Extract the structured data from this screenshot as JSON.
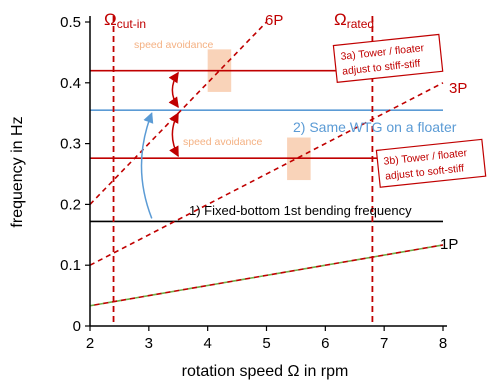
{
  "chart_data": {
    "type": "line",
    "xlabel": "rotation speed Ω in rpm",
    "ylabel": "frequency in Hz",
    "xlim": [
      2,
      8
    ],
    "ylim": [
      0,
      0.5
    ],
    "xticks": [
      "2",
      "3",
      "4",
      "5",
      "6",
      "7",
      "8"
    ],
    "yticks": [
      "0",
      "0.1",
      "0.2",
      "0.3",
      "0.4",
      "0.5"
    ],
    "grid": false,
    "excitation_lines": [
      {
        "name": "1P",
        "x": [
          2,
          8
        ],
        "y": [
          0.0333,
          0.1333
        ]
      },
      {
        "name": "3P",
        "x": [
          2,
          8
        ],
        "y": [
          0.1,
          0.4
        ]
      },
      {
        "name": "6P",
        "x": [
          2,
          5
        ],
        "y": [
          0.2,
          0.5
        ]
      }
    ],
    "speed_bounds": [
      {
        "omega_label": "Ω",
        "sub": "cut-in",
        "x": 2.4
      },
      {
        "omega_label": "Ω",
        "sub": "rated",
        "x": 6.8
      }
    ],
    "frequency_levels": [
      {
        "name": "fixed_bottom",
        "y": 0.172,
        "label": "1) Fixed-bottom 1st bending frequency"
      },
      {
        "name": "floater",
        "y": 0.355,
        "label": "2) Same WTG on a floater"
      },
      {
        "name": "stiff_stiff",
        "y": 0.42,
        "label": "3a) Tower / floater adjust to stiff-stiff"
      },
      {
        "name": "soft_stiff",
        "y": 0.276,
        "label": "3b) Tower / floater adjust to soft-stiff"
      }
    ],
    "avoidance_zones": [
      {
        "label": "speed avoidance",
        "x": [
          4.0,
          4.4
        ],
        "y": [
          0.385,
          0.455
        ]
      },
      {
        "label": "speed avoidance",
        "x": [
          5.35,
          5.75
        ],
        "y": [
          0.24,
          0.31
        ]
      }
    ],
    "colors": {
      "red": "#c00000",
      "blue": "#5b9bd5",
      "black": "#000000",
      "green": "#70ad47",
      "zone": "#f8cbad",
      "zone_text": "#f4b183"
    }
  }
}
